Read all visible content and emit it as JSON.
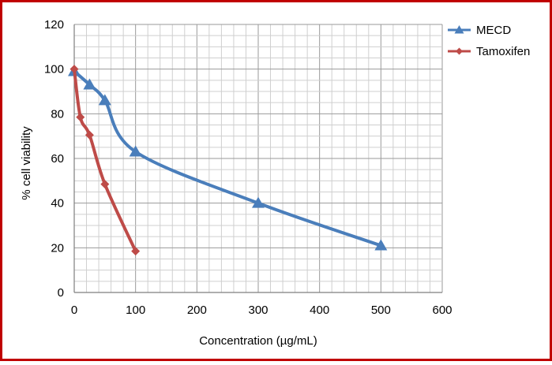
{
  "chart_data": {
    "type": "line",
    "title": "",
    "xlabel": "Concentration (µg/mL)",
    "ylabel": "% cell viability",
    "xlim": [
      0,
      600
    ],
    "ylim": [
      0,
      120
    ],
    "x_ticks": [
      0,
      100,
      200,
      300,
      400,
      500,
      600
    ],
    "y_ticks": [
      0,
      20,
      40,
      60,
      80,
      100,
      120
    ],
    "grid": true,
    "legend_position": "top-right",
    "series": [
      {
        "name": "MECD",
        "color": "#4a7ebb",
        "marker": "triangle",
        "x": [
          0,
          25,
          50,
          100,
          300,
          500
        ],
        "y": [
          99,
          93,
          86,
          63,
          40,
          21
        ]
      },
      {
        "name": "Tamoxifen",
        "color": "#be4b48",
        "marker": "diamond",
        "x": [
          0,
          10,
          25,
          50,
          100
        ],
        "y": [
          100,
          78.5,
          70.5,
          48.5,
          18.5
        ]
      }
    ],
    "border_color": "#c00000"
  }
}
